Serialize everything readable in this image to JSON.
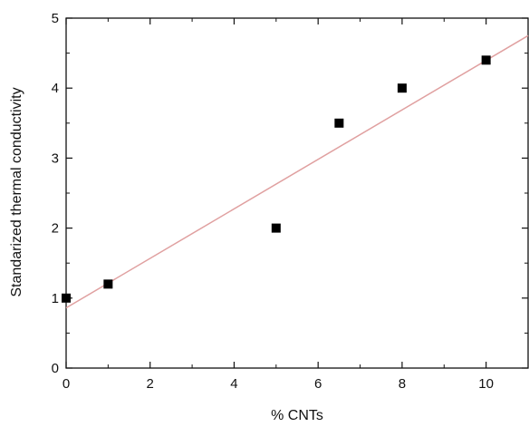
{
  "chart_data": {
    "type": "scatter",
    "xlabel": "% CNTs",
    "ylabel": "Standarized thermal conductivity",
    "xlim": [
      0,
      11
    ],
    "ylim": [
      0,
      5
    ],
    "x_ticks": [
      0,
      2,
      4,
      6,
      8,
      10
    ],
    "x_tick_labels": [
      "0",
      "2",
      "4",
      "6",
      "8",
      "10"
    ],
    "y_ticks": [
      0,
      1,
      2,
      3,
      4,
      5
    ],
    "y_tick_labels": [
      "0",
      "1",
      "2",
      "3",
      "4",
      "5"
    ],
    "grid": false,
    "series": [
      {
        "type": "scatter",
        "marker": "square",
        "color": "#000000",
        "points": [
          {
            "x": 0,
            "y": 1.0
          },
          {
            "x": 1,
            "y": 1.2
          },
          {
            "x": 5,
            "y": 2.0
          },
          {
            "x": 6.5,
            "y": 3.5
          },
          {
            "x": 8,
            "y": 4.0
          },
          {
            "x": 10,
            "y": 4.4
          }
        ]
      },
      {
        "type": "line",
        "color": "#e0a0a0",
        "fit": "linear",
        "points": [
          {
            "x": 0,
            "y": 0.86
          },
          {
            "x": 11,
            "y": 4.75
          }
        ]
      }
    ]
  }
}
